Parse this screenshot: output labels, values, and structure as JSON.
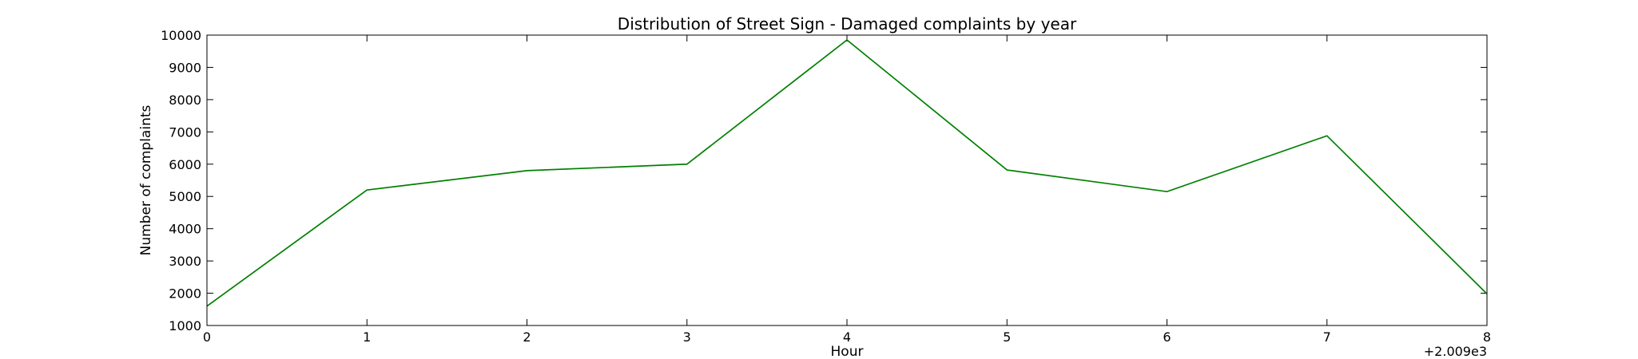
{
  "chart_data": {
    "type": "line",
    "title": "Distribution of  Street Sign - Damaged complaints by year",
    "xlabel": "Hour",
    "ylabel": "Number of complaints",
    "x_offset_label": "+2.009e3",
    "x": [
      0,
      1,
      2,
      3,
      4,
      5,
      6,
      7,
      8
    ],
    "series": [
      {
        "values": [
          1600,
          5200,
          5800,
          6000,
          9850,
          5820,
          5150,
          6880,
          1980
        ],
        "color": "#008000"
      }
    ],
    "xlim": [
      0,
      8
    ],
    "ylim": [
      1000,
      10000
    ],
    "xticks": [
      0,
      1,
      2,
      3,
      4,
      5,
      6,
      7,
      8
    ],
    "yticks": [
      1000,
      2000,
      3000,
      4000,
      5000,
      6000,
      7000,
      8000,
      9000,
      10000
    ],
    "grid": false,
    "legend": "none"
  }
}
